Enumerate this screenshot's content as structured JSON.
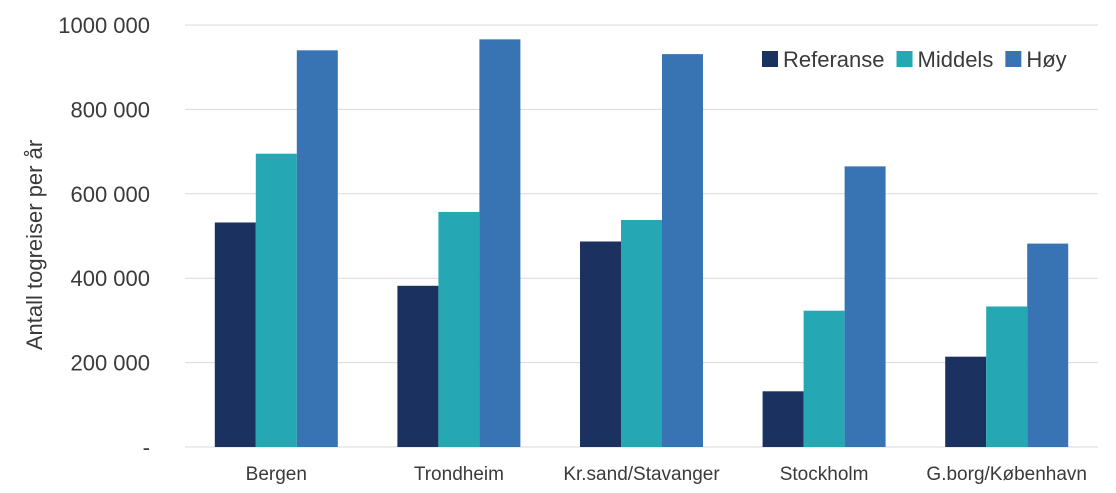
{
  "chart_data": {
    "type": "bar",
    "title": "",
    "xlabel": "",
    "ylabel": "Antall togreiser per år",
    "ylim": [
      0,
      1000000
    ],
    "yticks": [
      0,
      200000,
      400000,
      600000,
      800000,
      1000000
    ],
    "ytick_labels": [
      "-",
      "200 000",
      "400 000",
      "600 000",
      "800 000",
      "1000 000"
    ],
    "grid": true,
    "legend_position": "top-right",
    "categories": [
      "Bergen",
      "Trondheim",
      "Kr.sand/Stavanger",
      "Stockholm",
      "G.borg/København"
    ],
    "series": [
      {
        "name": "Referanse",
        "color": "#1b3160",
        "values": [
          532000,
          382000,
          487000,
          132000,
          214000
        ]
      },
      {
        "name": "Middels",
        "color": "#25a8b3",
        "values": [
          695000,
          557000,
          538000,
          323000,
          333000
        ]
      },
      {
        "name": "Høy",
        "color": "#3874b3",
        "values": [
          940000,
          966000,
          931000,
          665000,
          482000
        ]
      }
    ]
  }
}
